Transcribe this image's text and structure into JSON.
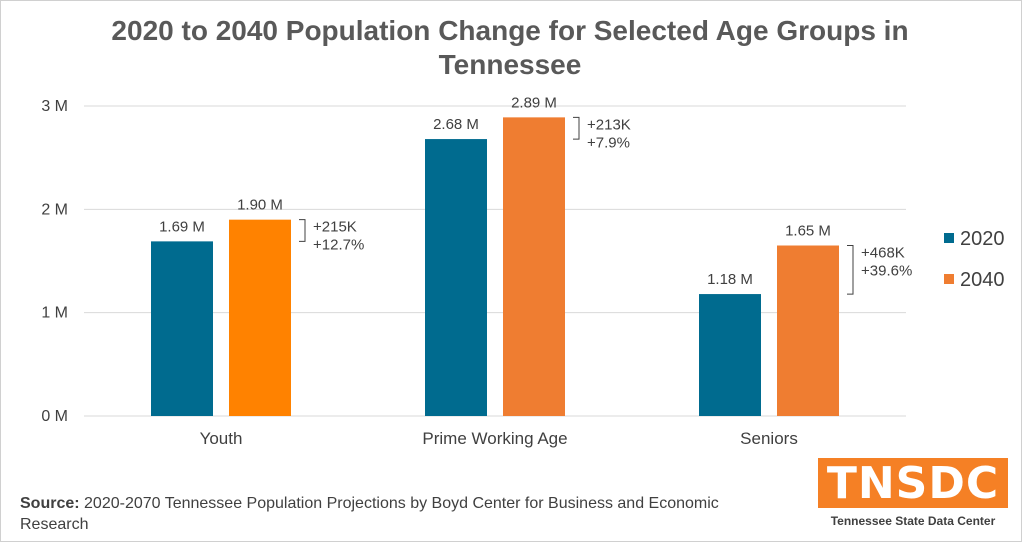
{
  "chart_data": {
    "type": "bar",
    "title": "2020 to 2040 Population Change for Selected Age Groups in Tennessee",
    "categories": [
      "Youth",
      "Prime Working Age",
      "Seniors"
    ],
    "series": [
      {
        "name": "2020",
        "values": [
          1.69,
          2.68,
          1.18
        ],
        "labels": [
          "1.69 M",
          "2.68 M",
          "1.18 M"
        ],
        "color": "#006b8f"
      },
      {
        "name": "2040",
        "values": [
          1.9,
          2.89,
          1.65
        ],
        "labels": [
          "1.90 M",
          "2.89 M",
          "1.65 M"
        ],
        "color": "#ef7d31"
      }
    ],
    "bar_colors_2040": [
      "#ff8200",
      "#ef7d31",
      "#ef7d31"
    ],
    "changes": [
      {
        "abs": "+215K",
        "pct": "+12.7%"
      },
      {
        "abs": "+213K",
        "pct": "+7.9%"
      },
      {
        "abs": "+468K",
        "pct": "+39.6%"
      }
    ],
    "yticks": [
      0,
      1,
      2,
      3
    ],
    "ytick_labels": [
      "0 M",
      "1 M",
      "2 M",
      "3 M"
    ],
    "ylim": [
      0,
      3
    ],
    "grid": true,
    "legend_position": "right",
    "xlabel": "",
    "ylabel": ""
  },
  "source": {
    "label": "Source:",
    "text": "2020-2070 Tennessee Population Projections by Boyd Center for Business and Economic Research"
  },
  "logo": {
    "wordmark": "TNSDC",
    "subtitle": "Tennessee State Data Center",
    "color": "#f58025"
  }
}
